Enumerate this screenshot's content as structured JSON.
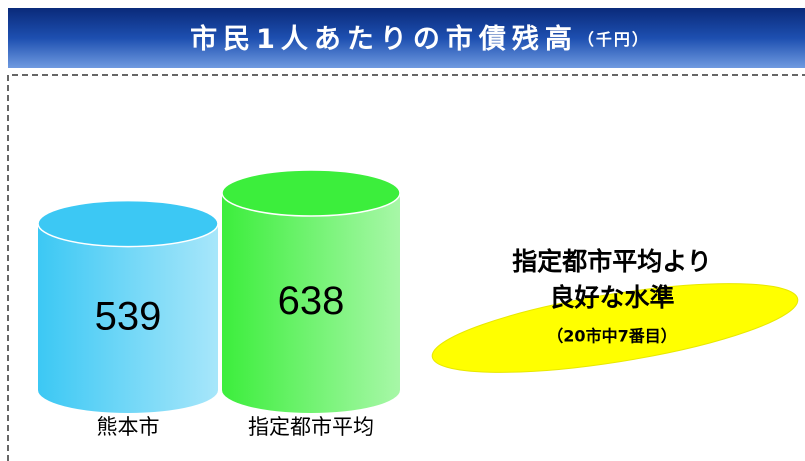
{
  "chart_data": {
    "type": "cylinder",
    "title": "市民1人あたりの市債残高",
    "unit": "（千円）",
    "categories": [
      "熊本市",
      "指定都市平均"
    ],
    "values": [
      539,
      638
    ],
    "colors": [
      "#3cc8f4",
      "#3cee3c"
    ],
    "annotation": {
      "lines": [
        "指定都市平均より",
        "良好な水準"
      ],
      "note": "（20市中7番目）",
      "color": "#ffff00"
    }
  }
}
